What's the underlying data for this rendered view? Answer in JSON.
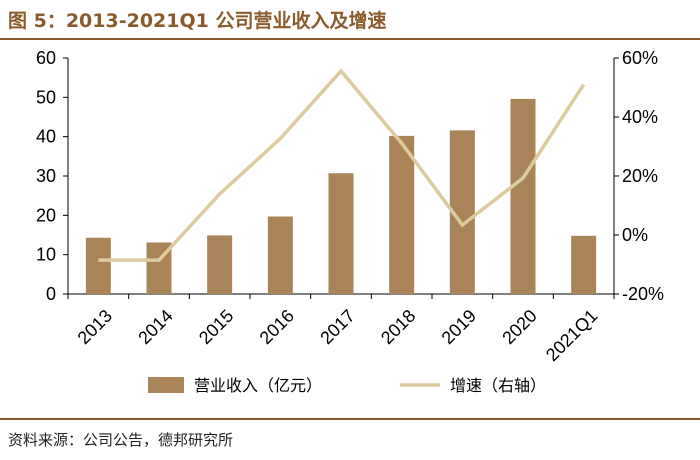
{
  "header": {
    "title": "图 5：2013-2021Q1 公司营业收入及增速"
  },
  "footer": {
    "source": "资料来源：公司公告，德邦研究所"
  },
  "colors": {
    "bar": "#a88458",
    "line": "#dccb9e",
    "accent": "#8b5a2b"
  },
  "chart_data": {
    "type": "bar",
    "categories": [
      "2013",
      "2014",
      "2015",
      "2016",
      "2017",
      "2018",
      "2019",
      "2020",
      "2021Q1"
    ],
    "series": [
      {
        "name": "营业收入（亿元）",
        "type": "bar",
        "axis": "left",
        "values": [
          14.3,
          13.1,
          14.9,
          19.7,
          30.7,
          40.2,
          41.6,
          49.6,
          14.8
        ]
      },
      {
        "name": "增速（右轴）",
        "type": "line",
        "axis": "right",
        "values": [
          -8.5,
          -8.5,
          13.9,
          32.7,
          55.6,
          31.1,
          3.4,
          19.3,
          51.0
        ]
      }
    ],
    "y_left": {
      "min": 0,
      "max": 60,
      "ticks": [
        "0",
        "10",
        "20",
        "30",
        "40",
        "50",
        "60"
      ]
    },
    "y_right": {
      "min": -20,
      "max": 60,
      "ticks": [
        "-20%",
        "0%",
        "20%",
        "40%",
        "60%"
      ]
    },
    "legend": "bottom",
    "grid": false
  }
}
